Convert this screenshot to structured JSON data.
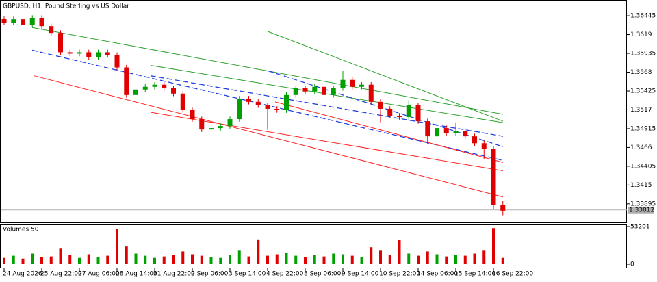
{
  "chart_data": [
    {
      "type": "candlestick",
      "title": "GBPUSD, H1:  Pound Sterling vs US Dollar",
      "categories": [
        "24 Aug 2026",
        null,
        null,
        null,
        "25 Aug 22:00",
        null,
        null,
        null,
        "27 Aug 06:00",
        null,
        null,
        null,
        "28 Aug 14:00",
        null,
        null,
        null,
        "31 Aug 22:00",
        null,
        null,
        null,
        "2 Sep 06:00",
        null,
        null,
        null,
        "3 Sep 14:00",
        null,
        null,
        null,
        "4 Sep 22:00",
        null,
        null,
        null,
        "8 Sep 06:00",
        null,
        null,
        null,
        "9 Sep 14:00",
        null,
        null,
        null,
        "10 Sep 22:00",
        null,
        null,
        null,
        "14 Sep 06:00",
        null,
        null,
        null,
        "15 Sep 14:00",
        null,
        null,
        null,
        "16 Sep 22:00",
        null
      ],
      "open": [
        1.364,
        1.36352,
        1.36398,
        1.36324,
        1.36417,
        1.36305,
        1.36212,
        1.3595,
        1.35931,
        1.3595,
        1.35885,
        1.3595,
        1.35913,
        1.35745,
        1.35371,
        1.35446,
        1.35483,
        1.35511,
        1.35464,
        1.3539,
        1.35165,
        1.35044,
        1.34904,
        1.34923,
        1.34951,
        1.35044,
        1.35324,
        1.35278,
        1.35231,
        1.35184,
        1.35165,
        1.35371,
        1.35464,
        1.35418,
        1.35483,
        1.35371,
        1.35464,
        1.35576,
        1.35483,
        1.35511,
        1.35278,
        1.35184,
        1.35091,
        1.35072,
        1.35231,
        1.35016,
        1.34811,
        1.34923,
        1.34857,
        1.34885,
        1.34811,
        1.34717,
        1.34642,
        1.33876
      ],
      "high": [
        1.36435,
        1.36433,
        1.36433,
        1.36452,
        1.36452,
        1.3634,
        1.36247,
        1.35985,
        1.35985,
        1.35985,
        1.35985,
        1.35985,
        1.35948,
        1.3578,
        1.35481,
        1.35518,
        1.35546,
        1.35546,
        1.35499,
        1.35425,
        1.352,
        1.35079,
        1.34958,
        1.34986,
        1.35079,
        1.35359,
        1.35359,
        1.35313,
        1.35266,
        1.35219,
        1.35406,
        1.35499,
        1.35499,
        1.35518,
        1.35518,
        1.35499,
        1.357,
        1.35611,
        1.35546,
        1.35546,
        1.35313,
        1.35219,
        1.35126,
        1.353,
        1.35266,
        1.35051,
        1.351,
        1.34958,
        1.35,
        1.3492,
        1.34846,
        1.34752,
        1.34677,
        1.3394
      ],
      "low": [
        1.36317,
        1.36317,
        1.36289,
        1.36289,
        1.3627,
        1.36177,
        1.35915,
        1.35896,
        1.35896,
        1.3585,
        1.3585,
        1.35878,
        1.3571,
        1.35336,
        1.35336,
        1.35411,
        1.35448,
        1.35429,
        1.35355,
        1.3513,
        1.35009,
        1.34869,
        1.34869,
        1.34888,
        1.34916,
        1.35009,
        1.35243,
        1.35196,
        1.349,
        1.3513,
        1.3513,
        1.35336,
        1.35383,
        1.35383,
        1.35336,
        1.35336,
        1.35429,
        1.35448,
        1.35448,
        1.35243,
        1.35,
        1.35056,
        1.35037,
        1.35037,
        1.34981,
        1.347,
        1.34776,
        1.34822,
        1.34822,
        1.34776,
        1.34682,
        1.345,
        1.3382,
        1.3374
      ],
      "close": [
        1.36352,
        1.36398,
        1.36324,
        1.36417,
        1.36305,
        1.36212,
        1.3595,
        1.35931,
        1.3595,
        1.35885,
        1.3595,
        1.35913,
        1.35745,
        1.35371,
        1.35446,
        1.35483,
        1.35511,
        1.35464,
        1.3539,
        1.35165,
        1.35044,
        1.34904,
        1.34923,
        1.34951,
        1.35044,
        1.35324,
        1.35278,
        1.35231,
        1.35184,
        1.35165,
        1.35371,
        1.35464,
        1.35418,
        1.35483,
        1.35371,
        1.35464,
        1.35576,
        1.35483,
        1.35511,
        1.35278,
        1.35184,
        1.35091,
        1.35072,
        1.35231,
        1.35016,
        1.34811,
        1.34923,
        1.34857,
        1.34885,
        1.34811,
        1.34717,
        1.34642,
        1.33876,
        1.33802
      ],
      "up_color": "#00a000",
      "down_color": "#e00000",
      "ylim": [
        1.33643,
        1.3665
      ],
      "yticks": [
        1.33895,
        1.3415,
        1.34405,
        1.3466,
        1.34915,
        1.3517,
        1.35425,
        1.3568,
        1.35935,
        1.3619,
        1.36445
      ],
      "bid": 1.33812,
      "bid_color": "#b0b0b0",
      "trendlines": [
        {
          "color": "#2ca02c",
          "dash": false,
          "x1": 2.98,
          "y1": 1.36286,
          "x2": 53.02,
          "y2": 1.35109
        },
        {
          "color": "#2ca02c",
          "dash": false,
          "x1": 28.07,
          "y1": 1.3623,
          "x2": 53.02,
          "y2": 1.35016
        },
        {
          "color": "#2ca02c",
          "dash": false,
          "x1": 15.56,
          "y1": 1.35773,
          "x2": 53.02,
          "y2": 1.34997
        },
        {
          "color": "#2040e0",
          "dash": true,
          "x1": 2.98,
          "y1": 1.35978,
          "x2": 53.02,
          "y2": 1.34484
        },
        {
          "color": "#2040e0",
          "dash": true,
          "x1": 28.07,
          "y1": 1.35698,
          "x2": 53.02,
          "y2": 1.3467
        },
        {
          "color": "#2040e0",
          "dash": true,
          "x1": 15.56,
          "y1": 1.35632,
          "x2": 53.02,
          "y2": 1.34811
        },
        {
          "color": "#ff2020",
          "dash": false,
          "x1": 3.2,
          "y1": 1.35632,
          "x2": 53.02,
          "y2": 1.33989
        },
        {
          "color": "#ff2020",
          "dash": false,
          "x1": 15.56,
          "y1": 1.35137,
          "x2": 53.02,
          "y2": 1.34344
        },
        {
          "color": "#ff2020",
          "dash": false,
          "x1": 28.8,
          "y1": 1.35278,
          "x2": 53.02,
          "y2": 1.34456
        }
      ]
    },
    {
      "type": "volume",
      "title": "Volumes 50",
      "values": [
        9000,
        12000,
        8000,
        15000,
        10000,
        11000,
        22000,
        13000,
        9000,
        14000,
        10000,
        12000,
        50000,
        25000,
        15000,
        12000,
        9000,
        11000,
        13000,
        18000,
        14000,
        12000,
        10000,
        9000,
        13000,
        20000,
        11000,
        35000,
        12000,
        14000,
        16000,
        12000,
        10000,
        13000,
        11000,
        15000,
        14000,
        12000,
        10000,
        24000,
        20000,
        13000,
        34000,
        15000,
        12000,
        18000,
        14000,
        11000,
        13000,
        12000,
        15000,
        20000,
        51000,
        9000
      ],
      "ylim": [
        -4840,
        56100
      ],
      "yticks": [
        0,
        53201
      ]
    }
  ]
}
